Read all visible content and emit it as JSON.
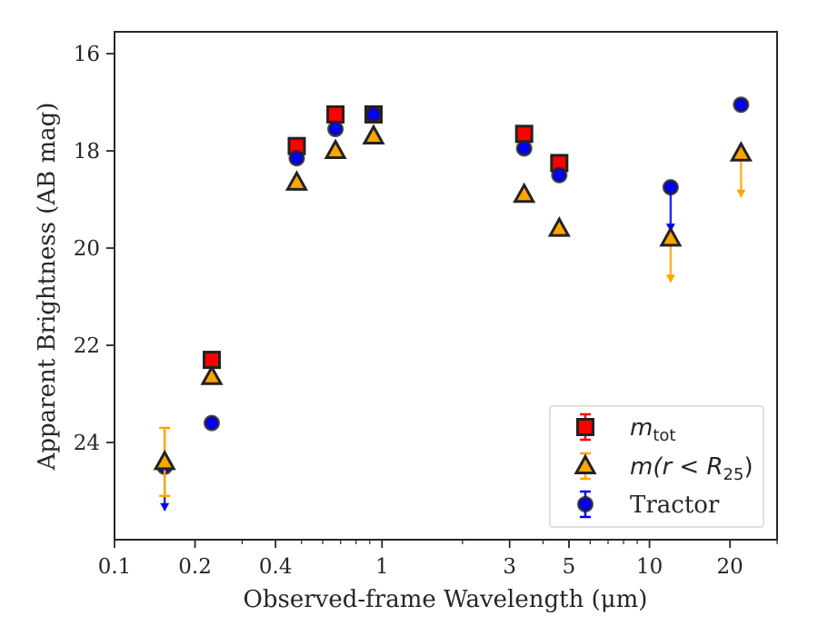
{
  "chart_data": {
    "type": "scatter",
    "xlabel": "Observed-frame Wavelength (μm)",
    "ylabel": "Apparent Brightness (AB mag)",
    "xscale": "log",
    "xlim": [
      0.1,
      30
    ],
    "ylim": [
      26.0,
      15.55
    ],
    "y_inverted": true,
    "x_ticks": [
      {
        "value": 0.1,
        "label": "0.1"
      },
      {
        "value": 0.2,
        "label": "0.2"
      },
      {
        "value": 0.4,
        "label": "0.4"
      },
      {
        "value": 1,
        "label": "1"
      },
      {
        "value": 3,
        "label": "3"
      },
      {
        "value": 5,
        "label": "5"
      },
      {
        "value": 10,
        "label": "10"
      },
      {
        "value": 20,
        "label": "20"
      }
    ],
    "y_ticks": [
      {
        "value": 16,
        "label": "16"
      },
      {
        "value": 18,
        "label": "18"
      },
      {
        "value": 20,
        "label": "20"
      },
      {
        "value": 22,
        "label": "22"
      },
      {
        "value": 24,
        "label": "24"
      }
    ],
    "grid": false,
    "legend_position": "lower right",
    "series": [
      {
        "name": "m_tot",
        "legend_main": "m",
        "legend_sub": "tot",
        "marker": "square",
        "fill": "#ff0000",
        "edge": "#222222",
        "errcolor": "#ff0000",
        "points": [
          {
            "x": 0.231,
            "y": 22.3
          },
          {
            "x": 0.48,
            "y": 17.9
          },
          {
            "x": 0.67,
            "y": 17.25
          },
          {
            "x": 0.93,
            "y": 17.25
          },
          {
            "x": 3.4,
            "y": 17.65
          },
          {
            "x": 4.6,
            "y": 18.25
          }
        ]
      },
      {
        "name": "m(r < R25)",
        "legend_main": "m(r < R",
        "legend_sub": "25",
        "legend_tail": ")",
        "marker": "triangle",
        "fill": "#ffa500",
        "edge": "#222222",
        "errcolor": "#ffa500",
        "points": [
          {
            "x": 0.154,
            "y": 24.4,
            "yerr": 0.7
          },
          {
            "x": 0.231,
            "y": 22.65
          },
          {
            "x": 0.48,
            "y": 18.65
          },
          {
            "x": 0.67,
            "y": 18.0
          },
          {
            "x": 0.93,
            "y": 17.7
          },
          {
            "x": 3.4,
            "y": 18.9
          },
          {
            "x": 4.6,
            "y": 19.6
          },
          {
            "x": 12.0,
            "y": 19.8,
            "upper_limit": true
          },
          {
            "x": 22.0,
            "y": 18.05,
            "upper_limit": true
          }
        ]
      },
      {
        "name": "Tractor",
        "marker": "circle",
        "fill": "#0000ff",
        "edge": "#222222",
        "errcolor": "#0000ff",
        "points": [
          {
            "x": 0.154,
            "y": 24.5,
            "upper_limit": true
          },
          {
            "x": 0.231,
            "y": 23.6
          },
          {
            "x": 0.48,
            "y": 18.15
          },
          {
            "x": 0.67,
            "y": 17.55
          },
          {
            "x": 0.93,
            "y": 17.25
          },
          {
            "x": 3.4,
            "y": 17.95
          },
          {
            "x": 4.6,
            "y": 18.5
          },
          {
            "x": 12.0,
            "y": 18.75,
            "upper_limit": true
          },
          {
            "x": 22.0,
            "y": 17.05
          }
        ]
      }
    ]
  }
}
